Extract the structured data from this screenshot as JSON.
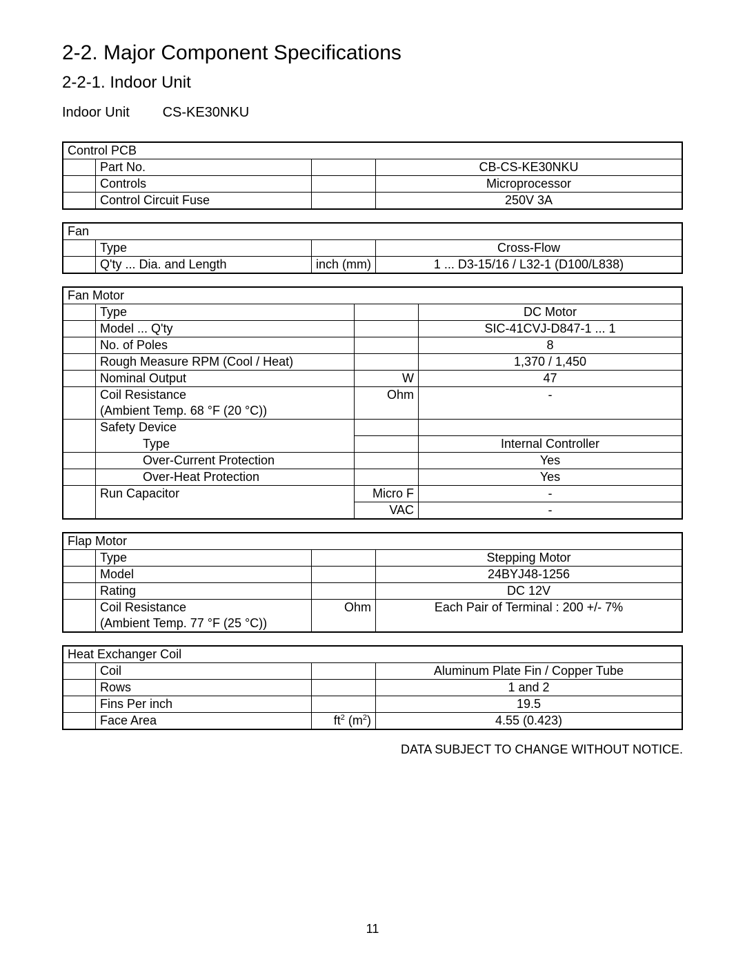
{
  "heading": {
    "section": "2-2.  Major Component Specifications",
    "subsection": "2-2-1.  Indoor Unit"
  },
  "unit": {
    "label": "Indoor Unit",
    "model": "CS-KE30NKU"
  },
  "groups": [
    {
      "name": "Control PCB",
      "rows": [
        {
          "label": "Part No.",
          "unit": "",
          "value": "CB-CS-KE30NKU"
        },
        {
          "label": "Controls",
          "unit": "",
          "value": "Microprocessor"
        },
        {
          "label": "Control Circuit Fuse",
          "unit": "",
          "value": "250V 3A"
        }
      ]
    },
    {
      "name": "Fan",
      "rows": [
        {
          "label": "Type",
          "unit": "",
          "value": "Cross-Flow"
        },
        {
          "label": "Q'ty ... Dia. and Length",
          "unit": "inch (mm)",
          "value": "1 ... D3-15/16 / L32-1 (D100/L838)"
        }
      ]
    },
    {
      "name": "Fan Motor",
      "rows": [
        {
          "label": "Type",
          "unit": "",
          "value": "DC Motor"
        },
        {
          "label": "Model ... Q'ty",
          "unit": "",
          "value": "SIC-41CVJ-D847-1 ... 1"
        },
        {
          "label": "No. of Poles",
          "unit": "",
          "value": "8"
        },
        {
          "label": "Rough Measure RPM (Cool / Heat)",
          "unit": "",
          "value": "1,370 / 1,450"
        },
        {
          "label": "Nominal Output",
          "unit": "W",
          "value": "47"
        },
        {
          "label": "Coil Resistance",
          "unit": "Ohm",
          "value": "-",
          "sub": " (Ambient Temp. 68 °F (20 °C))"
        },
        {
          "label": "Safety Device",
          "unit": "",
          "value": "",
          "noval": true
        },
        {
          "label": "Type",
          "unit": "",
          "value": "Internal Controller",
          "indent": 2,
          "notop": true
        },
        {
          "label": "Over-Current Protection",
          "unit": "",
          "value": "Yes",
          "indent": 2
        },
        {
          "label": "Over-Heat Protection",
          "unit": "",
          "value": "Yes",
          "indent": 2
        },
        {
          "label": "Run Capacitor",
          "unit": "Micro F",
          "value": "-"
        },
        {
          "label": "",
          "unit": "VAC",
          "value": "-",
          "notop_label": true
        }
      ]
    },
    {
      "name": "Flap Motor",
      "rows": [
        {
          "label": "Type",
          "unit": "",
          "value": "Stepping Motor"
        },
        {
          "label": "Model",
          "unit": "",
          "value": "24BYJ48-1256"
        },
        {
          "label": "Rating",
          "unit": "",
          "value": "DC 12V"
        },
        {
          "label": "Coil Resistance",
          "unit": "Ohm",
          "value": "Each Pair of Terminal : 200 +/- 7%",
          "sub": " (Ambient Temp. 77 °F (25 °C))"
        }
      ]
    },
    {
      "name": "Heat Exchanger Coil",
      "rows": [
        {
          "label": "Coil",
          "unit": "",
          "value": "Aluminum Plate Fin / Copper Tube"
        },
        {
          "label": "Rows",
          "unit": "",
          "value": "1 and 2"
        },
        {
          "label": "Fins Per inch",
          "unit": "",
          "value": "19.5"
        },
        {
          "label": "Face Area",
          "unit": "ft² (m²)",
          "value": "4.55 (0.423)",
          "unit_html": "ft<sup>2</sup> (m<sup>2</sup>)"
        }
      ]
    }
  ],
  "footer": "DATA SUBJECT TO CHANGE WITHOUT NOTICE.",
  "pageno": "11"
}
